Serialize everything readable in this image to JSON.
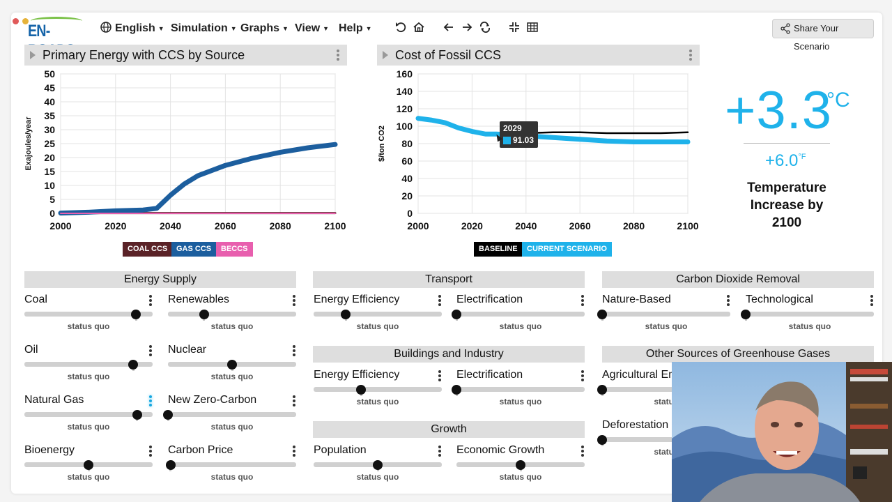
{
  "app": {
    "logo_text": "EN-ROADS",
    "brand_color": "#1463a8"
  },
  "menu": {
    "items": [
      {
        "icon": "globe-icon",
        "label": "English"
      },
      {
        "label": "Simulation"
      },
      {
        "label": "Graphs"
      },
      {
        "label": "View"
      },
      {
        "label": "Help"
      }
    ],
    "tools": [
      "undo-icon",
      "home-icon",
      "back-arrow-icon",
      "forward-arrow-icon",
      "redo-icon",
      "collapse-icon",
      "grid-icon"
    ],
    "share_label": "Share Your Scenario"
  },
  "graph1": {
    "title": "Primary Energy with CCS by Source",
    "chart_data": {
      "type": "line",
      "title": "Primary Energy with CCS by Source",
      "ylabel": "Exajoules/year",
      "xlabel": "",
      "xlim": [
        2000,
        2100
      ],
      "ylim": [
        0,
        50
      ],
      "x_ticks": [
        2000,
        2020,
        2040,
        2060,
        2080,
        2100
      ],
      "y_ticks": [
        0,
        5,
        10,
        15,
        20,
        25,
        30,
        35,
        40,
        45,
        50
      ],
      "grid": true,
      "series": [
        {
          "name": "COAL CCS",
          "color": "#5a2227",
          "x": [
            2000,
            2035,
            2100
          ],
          "values": [
            0.1,
            0.1,
            0.1
          ]
        },
        {
          "name": "GAS CCS",
          "color": "#1c5e9e",
          "x": [
            2000,
            2010,
            2020,
            2030,
            2035,
            2040,
            2045,
            2050,
            2060,
            2070,
            2080,
            2090,
            2100
          ],
          "values": [
            0.1,
            0.4,
            0.9,
            1.2,
            1.8,
            6.5,
            10.5,
            13.5,
            17.2,
            19.8,
            21.9,
            23.5,
            24.7
          ]
        },
        {
          "name": "BECCS",
          "color": "#e85fae",
          "x": [
            2000,
            2100
          ],
          "values": [
            0,
            0
          ]
        }
      ]
    }
  },
  "graph2": {
    "title": "Cost of Fossil CCS",
    "tooltip": {
      "year": "2029",
      "value": "91.03"
    },
    "chart_data": {
      "type": "line",
      "title": "Cost of Fossil CCS",
      "ylabel": "$/ton CO2",
      "xlabel": "",
      "xlim": [
        2000,
        2100
      ],
      "ylim": [
        0,
        160
      ],
      "x_ticks": [
        2000,
        2020,
        2040,
        2060,
        2080,
        2100
      ],
      "y_ticks": [
        0,
        20,
        40,
        60,
        80,
        100,
        120,
        140,
        160
      ],
      "grid": true,
      "series": [
        {
          "name": "BASELINE",
          "color": "#000000",
          "x": [
            2000,
            2005,
            2010,
            2015,
            2020,
            2025,
            2029,
            2035,
            2040,
            2050,
            2060,
            2070,
            2080,
            2090,
            2100
          ],
          "values": [
            109,
            107,
            104,
            98,
            94,
            91,
            91,
            91,
            92,
            93,
            93,
            92,
            92,
            92,
            93
          ]
        },
        {
          "name": "CURRENT SCENARIO",
          "color": "#1fb2ea",
          "x": [
            2000,
            2005,
            2010,
            2015,
            2020,
            2025,
            2029,
            2035,
            2040,
            2050,
            2060,
            2070,
            2080,
            2090,
            2100
          ],
          "values": [
            109,
            107,
            104,
            98,
            94,
            91,
            91.03,
            90,
            89,
            87,
            85,
            83,
            82,
            82,
            82
          ]
        }
      ]
    }
  },
  "temperature": {
    "celsius": "+3.3",
    "c_unit": "°C",
    "fahrenheit": "+6.0",
    "f_unit": "°F",
    "caption": "Temperature Increase by 2100",
    "color": "#1fb2ea"
  },
  "sections": {
    "energy_supply": {
      "title": "Energy Supply",
      "controls": [
        {
          "label": "Coal",
          "status": "status quo",
          "value": 0.87
        },
        {
          "label": "Renewables",
          "status": "status quo",
          "value": 0.28
        },
        {
          "label": "Oil",
          "status": "status quo",
          "value": 0.85
        },
        {
          "label": "Nuclear",
          "status": "status quo",
          "value": 0.5
        },
        {
          "label": "Natural Gas",
          "status": "status quo",
          "value": 0.88
        },
        {
          "label": "New Zero-Carbon",
          "status": "status quo",
          "value": 0.0
        },
        {
          "label": "Bioenergy",
          "status": "status quo",
          "value": 0.5
        },
        {
          "label": "Carbon Price",
          "status": "status quo",
          "value": 0.02
        }
      ]
    },
    "transport": {
      "title": "Transport",
      "controls": [
        {
          "label": "Energy Efficiency",
          "status": "status quo",
          "value": 0.25
        },
        {
          "label": "Electrification",
          "status": "status quo",
          "value": 0.0
        }
      ]
    },
    "buildings": {
      "title": "Buildings and Industry",
      "controls": [
        {
          "label": "Energy Efficiency",
          "status": "status quo",
          "value": 0.37
        },
        {
          "label": "Electrification",
          "status": "status quo",
          "value": 0.0
        }
      ]
    },
    "growth": {
      "title": "Growth",
      "controls": [
        {
          "label": "Population",
          "status": "status quo",
          "value": 0.5
        },
        {
          "label": "Economic Growth",
          "status": "status quo",
          "value": 0.5
        }
      ]
    },
    "cdr": {
      "title": "Carbon Dioxide Removal",
      "controls": [
        {
          "label": "Nature-Based",
          "status": "status quo",
          "value": 0.0
        },
        {
          "label": "Technological",
          "status": "status quo",
          "value": 0.0
        }
      ]
    },
    "other_ghg": {
      "title": "Other Sources of Greenhouse Gases",
      "controls": [
        {
          "label": "Agricultural Em",
          "status": "status",
          "value": 0.0
        },
        {
          "label": "Deforestation",
          "status": "status",
          "value": 0.0
        }
      ]
    }
  }
}
